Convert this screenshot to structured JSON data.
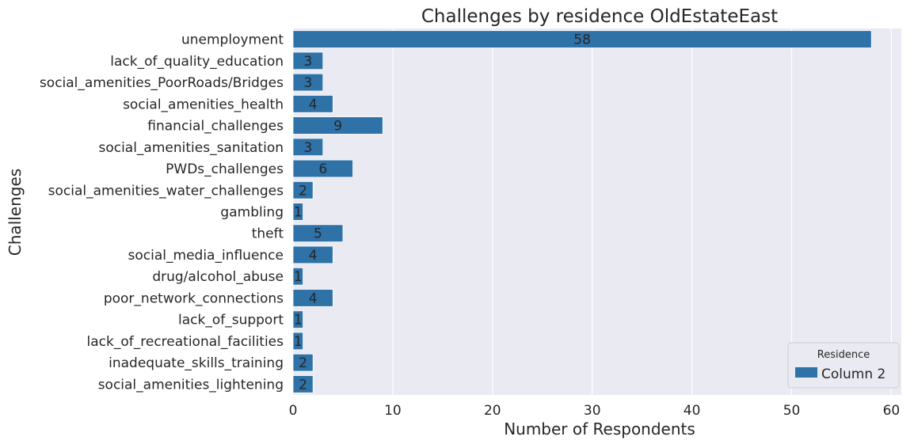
{
  "chart_data": {
    "type": "bar",
    "orientation": "horizontal",
    "title": "Challenges by residence OldEstateEast",
    "xlabel": "Number of Respondents",
    "ylabel": "Challenges",
    "categories": [
      "unemployment",
      "lack_of_quality_education",
      "social_amenities_PoorRoads/Bridges",
      "social_amenities_health",
      "financial_challenges",
      "social_amenities_sanitation",
      "PWDs_challenges",
      "social_amenities_water_challenges",
      "gambling",
      "theft",
      "social_media_influence",
      "drug/alcohol_abuse",
      "poor_network_connections",
      "lack_of_support",
      "lack_of_recreational_facilities",
      "inadequate_skills_training",
      "social_amenities_lightening"
    ],
    "series": [
      {
        "name": "Column 2",
        "values": [
          58,
          3,
          3,
          4,
          9,
          3,
          6,
          2,
          1,
          5,
          4,
          1,
          4,
          1,
          1,
          2,
          2
        ],
        "color": "#2f72a8"
      }
    ],
    "xlim": [
      0,
      61
    ],
    "xticks": [
      0,
      10,
      20,
      30,
      40,
      50,
      60
    ],
    "grid": true,
    "legend": {
      "title": "Residence",
      "placement": "lower-right"
    },
    "colors": {
      "plot_background": "#eaeaf2",
      "grid": "#ffffff",
      "bar_edge": "#ffffff"
    }
  }
}
